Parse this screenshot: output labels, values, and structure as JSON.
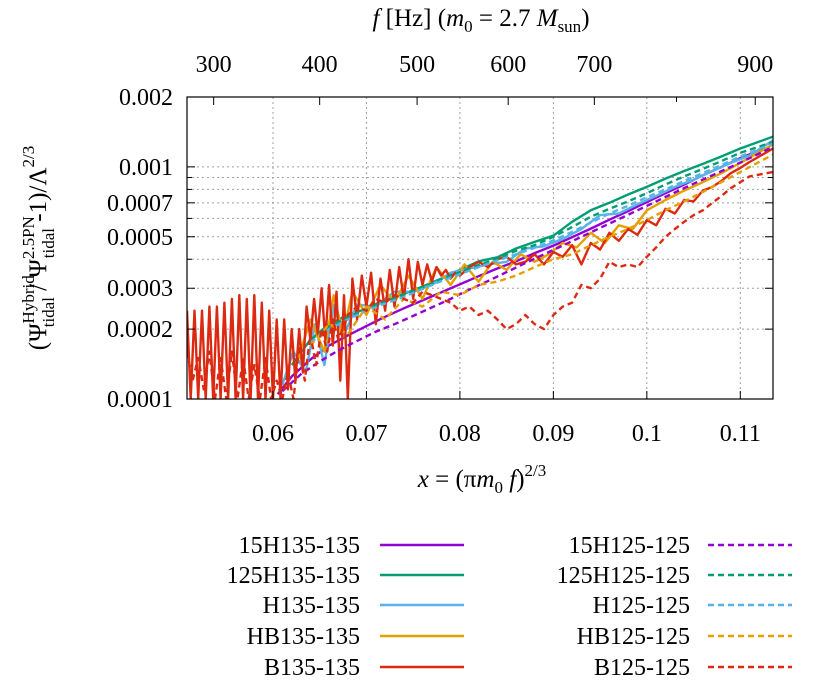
{
  "chart_data": {
    "type": "line",
    "xlabel": "x = (πm0 f)2/3",
    "xlabel_parts": {
      "prefix": "x",
      "eq": " = (",
      "pi": "π",
      "m": "m",
      "sub0": "0",
      "f": " f",
      "close": ")",
      "exp": "2/3"
    },
    "top_xlabel_parts": {
      "f": "f",
      "hz": " [Hz] (",
      "m": "m",
      "sub0": "0",
      "eq": " = 2.7 ",
      "M": "M",
      "sun": "sun",
      "close": ")"
    },
    "ylabel_parts": {
      "open": "(Ψ",
      "hybrid": "Hybrid",
      "tidal1": "tidal",
      "slash": " / Ψ",
      "pn": "2.5PN",
      "tidal2": "tidal",
      "tail": " -1)/Λ",
      "exp": "2/3"
    },
    "xlim": [
      0.0508,
      0.1135
    ],
    "ylim": [
      0.0001,
      0.002
    ],
    "yscale": "log",
    "grid": true,
    "legend_position": "below",
    "x_ticks": [
      {
        "value": 0.06,
        "label": "0.06"
      },
      {
        "value": 0.07,
        "label": "0.07"
      },
      {
        "value": 0.08,
        "label": "0.08"
      },
      {
        "value": 0.09,
        "label": "0.09"
      },
      {
        "value": 0.1,
        "label": "0.1"
      },
      {
        "value": 0.11,
        "label": "0.11"
      }
    ],
    "top_ticks": [
      {
        "value": 300,
        "label": "300"
      },
      {
        "value": 400,
        "label": "400"
      },
      {
        "value": 500,
        "label": "500"
      },
      {
        "value": 600,
        "label": "600"
      },
      {
        "value": 700,
        "label": "700"
      },
      {
        "value": 900,
        "label": "900"
      }
    ],
    "top_minor_ticks": [
      800
    ],
    "y_ticks": [
      {
        "value": 0.0001,
        "label": "0.0001"
      },
      {
        "value": 0.0002,
        "label": "0.0002"
      },
      {
        "value": 0.0003,
        "label": "0.0003"
      },
      {
        "value": 0.0005,
        "label": "0.0005"
      },
      {
        "value": 0.0007,
        "label": "0.0007"
      },
      {
        "value": 0.001,
        "label": "0.001"
      },
      {
        "value": 0.002,
        "label": "0.002"
      }
    ],
    "y_minor_ticks": [
      0.0004,
      0.0006,
      0.0008,
      0.0009
    ],
    "series": [
      {
        "name": "15H135-135",
        "color": "#9400d3",
        "dash": "solid",
        "x": [
          0.0605,
          0.062,
          0.064,
          0.066,
          0.068,
          0.07,
          0.072,
          0.074,
          0.076,
          0.078,
          0.08,
          0.082,
          0.084,
          0.086,
          0.088,
          0.09,
          0.092,
          0.094,
          0.096,
          0.098,
          0.1,
          0.102,
          0.104,
          0.106,
          0.108,
          0.11,
          0.1125
        ],
        "y": [
          0.000105,
          0.000125,
          0.000148,
          0.00017,
          0.000188,
          0.000206,
          0.000226,
          0.000246,
          0.000266,
          0.000288,
          0.000312,
          0.000338,
          0.000365,
          0.000392,
          0.000425,
          0.000458,
          0.000498,
          0.000542,
          0.000592,
          0.000645,
          0.000705,
          0.00077,
          0.00084,
          0.00092,
          0.001,
          0.00109,
          0.0012
        ]
      },
      {
        "name": "125H135-135",
        "color": "#009e73",
        "dash": "solid",
        "x": [
          0.062,
          0.064,
          0.066,
          0.068,
          0.07,
          0.072,
          0.074,
          0.076,
          0.078,
          0.08,
          0.082,
          0.084,
          0.086,
          0.088,
          0.09,
          0.092,
          0.094,
          0.096,
          0.098,
          0.1,
          0.102,
          0.104,
          0.106,
          0.108,
          0.11,
          0.1135
        ],
        "y": [
          0.00014,
          0.00018,
          0.00021,
          0.00023,
          0.000245,
          0.000268,
          0.000284,
          0.000305,
          0.00033,
          0.00036,
          0.000392,
          0.000408,
          0.000445,
          0.000475,
          0.000505,
          0.00058,
          0.00065,
          0.0007,
          0.00076,
          0.00082,
          0.00089,
          0.00096,
          0.00103,
          0.00111,
          0.0012,
          0.00135
        ]
      },
      {
        "name": "H135-135",
        "color": "#56b4e9",
        "dash": "solid",
        "x": [
          0.061,
          0.0622,
          0.0635,
          0.0645,
          0.0655,
          0.0665,
          0.0675,
          0.069,
          0.071,
          0.073,
          0.075,
          0.077,
          0.079,
          0.081,
          0.083,
          0.085,
          0.087,
          0.089,
          0.091,
          0.093,
          0.095,
          0.097,
          0.099,
          0.101,
          0.103,
          0.105,
          0.107,
          0.109,
          0.111,
          0.1135
        ],
        "y": [
          0.000115,
          0.00016,
          0.00013,
          0.00021,
          0.00014,
          0.000255,
          0.000185,
          0.000255,
          0.00025,
          0.00029,
          0.00029,
          0.00031,
          0.00035,
          0.000365,
          0.00038,
          0.00039,
          0.000445,
          0.000455,
          0.00049,
          0.00054,
          0.00062,
          0.00063,
          0.00069,
          0.00075,
          0.00082,
          0.00088,
          0.00096,
          0.00104,
          0.00112,
          0.0013
        ]
      },
      {
        "name": "HB135-135",
        "color": "#e69f00",
        "dash": "solid",
        "x": [
          0.0625,
          0.064,
          0.0655,
          0.0665,
          0.0675,
          0.0685,
          0.07,
          0.0715,
          0.073,
          0.0745,
          0.076,
          0.0775,
          0.079,
          0.0805,
          0.082,
          0.0835,
          0.085,
          0.0865,
          0.088,
          0.0895,
          0.091,
          0.0925,
          0.094,
          0.0955,
          0.097,
          0.0985,
          0.1,
          0.102,
          0.104,
          0.106,
          0.108,
          0.11,
          0.1135
        ],
        "y": [
          0.00014,
          0.00022,
          0.00016,
          0.00028,
          0.00019,
          0.00029,
          0.00023,
          0.00031,
          0.00026,
          0.00034,
          0.00027,
          0.00037,
          0.00031,
          0.00038,
          0.00032,
          0.00039,
          0.00036,
          0.00042,
          0.00039,
          0.00042,
          0.00047,
          0.00045,
          0.00052,
          0.00047,
          0.00056,
          0.00054,
          0.00065,
          0.00072,
          0.00079,
          0.00086,
          0.00094,
          0.00104,
          0.00125
        ]
      },
      {
        "name": "B135-135",
        "color": "#dc2a12",
        "dash": "solid",
        "x": [
          0.0508,
          0.0512,
          0.0516,
          0.052,
          0.0524,
          0.0528,
          0.0532,
          0.0536,
          0.054,
          0.0544,
          0.0548,
          0.0552,
          0.0556,
          0.056,
          0.0564,
          0.0568,
          0.0572,
          0.0576,
          0.058,
          0.0584,
          0.0588,
          0.0592,
          0.0596,
          0.06,
          0.0604,
          0.0608,
          0.0612,
          0.0616,
          0.062,
          0.0624,
          0.0628,
          0.0632,
          0.0636,
          0.064,
          0.0644,
          0.0648,
          0.0652,
          0.0656,
          0.066,
          0.0664,
          0.0668,
          0.0672,
          0.0676,
          0.068,
          0.0685,
          0.069,
          0.0695,
          0.07,
          0.0705,
          0.071,
          0.0715,
          0.072,
          0.0725,
          0.073,
          0.0735,
          0.074,
          0.0745,
          0.075,
          0.0755,
          0.076,
          0.0765,
          0.077,
          0.0775,
          0.078,
          0.0785,
          0.079,
          0.0795,
          0.08,
          0.081,
          0.082,
          0.083,
          0.084,
          0.085,
          0.086,
          0.087,
          0.088,
          0.089,
          0.09,
          0.091,
          0.092,
          0.093,
          0.094,
          0.095,
          0.096,
          0.097,
          0.098,
          0.099,
          0.1,
          0.101,
          0.102,
          0.103,
          0.104,
          0.105,
          0.106,
          0.107,
          0.108,
          0.109,
          0.11,
          0.111,
          0.1135
        ],
        "y": [
          0.00024,
          0.0001,
          0.00024,
          0.0001,
          0.00024,
          0.0001,
          0.00025,
          0.0001,
          0.00025,
          0.0001,
          0.00026,
          0.0001,
          0.00027,
          0.0001,
          0.00028,
          0.0001,
          0.00027,
          0.0001,
          0.00028,
          0.0001,
          0.00026,
          0.0001,
          0.00024,
          0.0001,
          0.00022,
          0.0001,
          0.00022,
          0.00011,
          0.0002,
          0.00012,
          0.0002,
          0.00013,
          0.00025,
          0.00018,
          0.00027,
          0.00019,
          0.0003,
          0.00018,
          0.00031,
          0.00017,
          0.00029,
          0.00012,
          0.00028,
          0.0001,
          0.00033,
          0.00022,
          0.00034,
          0.00025,
          0.00035,
          0.00021,
          0.00033,
          0.00024,
          0.00036,
          0.00025,
          0.00037,
          0.00027,
          0.0004,
          0.00027,
          0.00039,
          0.00031,
          0.00038,
          0.00032,
          0.00037,
          0.00034,
          0.00036,
          0.00033,
          0.00035,
          0.00034,
          0.00037,
          0.00039,
          0.00037,
          0.0004,
          0.00041,
          0.00038,
          0.00039,
          0.00042,
          0.00038,
          0.00043,
          0.00041,
          0.00046,
          0.00038,
          0.00047,
          0.00044,
          0.00052,
          0.00048,
          0.00054,
          0.00051,
          0.00059,
          0.00056,
          0.00066,
          0.00063,
          0.00072,
          0.00071,
          0.00079,
          0.00082,
          0.00087,
          0.00094,
          0.00099,
          0.00105,
          0.0012
        ]
      },
      {
        "name": "15H125-125",
        "color": "#9400d3",
        "dash": "dashed",
        "x": [
          0.061,
          0.063,
          0.065,
          0.067,
          0.069,
          0.071,
          0.073,
          0.075,
          0.077,
          0.079,
          0.081,
          0.083,
          0.085,
          0.087,
          0.089,
          0.091,
          0.093,
          0.095,
          0.097,
          0.099,
          0.101,
          0.103,
          0.105,
          0.107,
          0.109,
          0.111,
          0.1135
        ],
        "y": [
          0.000108,
          0.000128,
          0.000145,
          0.000162,
          0.000178,
          0.000195,
          0.00021,
          0.000228,
          0.000248,
          0.00027,
          0.000296,
          0.000322,
          0.000352,
          0.000385,
          0.00042,
          0.000458,
          0.0005,
          0.000546,
          0.000595,
          0.00065,
          0.00071,
          0.000776,
          0.000846,
          0.00092,
          0.001,
          0.00109,
          0.00122
        ]
      },
      {
        "name": "125H125-125",
        "color": "#009e73",
        "dash": "dashed",
        "x": [
          0.064,
          0.066,
          0.068,
          0.07,
          0.072,
          0.074,
          0.076,
          0.078,
          0.08,
          0.082,
          0.084,
          0.086,
          0.088,
          0.09,
          0.092,
          0.094,
          0.096,
          0.098,
          0.1,
          0.102,
          0.104,
          0.106,
          0.108,
          0.11,
          0.1135
        ],
        "y": [
          0.00018,
          0.000205,
          0.000225,
          0.000245,
          0.000262,
          0.000282,
          0.000302,
          0.000328,
          0.000352,
          0.000378,
          0.000402,
          0.000435,
          0.00046,
          0.0005,
          0.00055,
          0.00061,
          0.00066,
          0.00071,
          0.00077,
          0.00084,
          0.00091,
          0.00098,
          0.00106,
          0.00115,
          0.00128
        ]
      },
      {
        "name": "H125-125",
        "color": "#56b4e9",
        "dash": "dashed",
        "x": [
          0.064,
          0.066,
          0.068,
          0.07,
          0.072,
          0.074,
          0.076,
          0.078,
          0.08,
          0.082,
          0.084,
          0.086,
          0.088,
          0.09,
          0.092,
          0.094,
          0.096,
          0.098,
          0.1,
          0.102,
          0.104,
          0.106,
          0.108,
          0.11,
          0.1135
        ],
        "y": [
          0.000175,
          0.0002,
          0.00022,
          0.00024,
          0.000258,
          0.000275,
          0.000298,
          0.000322,
          0.000345,
          0.00037,
          0.000395,
          0.00042,
          0.000448,
          0.000482,
          0.000525,
          0.000575,
          0.00063,
          0.00068,
          0.00074,
          0.0008,
          0.00087,
          0.00094,
          0.00102,
          0.00111,
          0.00126
        ]
      },
      {
        "name": "HB125-125",
        "color": "#e69f00",
        "dash": "dashed",
        "x": [
          0.064,
          0.066,
          0.068,
          0.07,
          0.072,
          0.074,
          0.076,
          0.078,
          0.08,
          0.082,
          0.084,
          0.086,
          0.088,
          0.09,
          0.092,
          0.094,
          0.096,
          0.098,
          0.1,
          0.102,
          0.104,
          0.106,
          0.108,
          0.11,
          0.1135
        ],
        "y": [
          0.00017,
          0.00021,
          0.00019,
          0.00025,
          0.00022,
          0.00027,
          0.00025,
          0.00029,
          0.00028,
          0.00031,
          0.00032,
          0.00034,
          0.00037,
          0.0004,
          0.00042,
          0.00046,
          0.0005,
          0.00054,
          0.00059,
          0.00065,
          0.00071,
          0.00078,
          0.00086,
          0.00095,
          0.00113
        ]
      },
      {
        "name": "B125-125",
        "color": "#dc2a12",
        "dash": "dashed",
        "x": [
          0.0508,
          0.0514,
          0.052,
          0.0526,
          0.0532,
          0.0538,
          0.0544,
          0.055,
          0.0556,
          0.0562,
          0.0568,
          0.0574,
          0.058,
          0.0586,
          0.0592,
          0.0598,
          0.0604,
          0.061,
          0.0616,
          0.0622,
          0.0628,
          0.0634,
          0.064,
          0.0646,
          0.0652,
          0.0658,
          0.0664,
          0.067,
          0.068,
          0.069,
          0.07,
          0.071,
          0.072,
          0.073,
          0.074,
          0.075,
          0.076,
          0.077,
          0.078,
          0.079,
          0.08,
          0.081,
          0.082,
          0.083,
          0.084,
          0.085,
          0.086,
          0.087,
          0.088,
          0.089,
          0.09,
          0.091,
          0.092,
          0.093,
          0.094,
          0.095,
          0.096,
          0.097,
          0.098,
          0.099,
          0.1,
          0.101,
          0.102,
          0.103,
          0.104,
          0.105,
          0.106,
          0.107,
          0.108,
          0.109,
          0.11,
          0.111,
          0.1135
        ],
        "y": [
          0.00016,
          0.00012,
          0.00015,
          0.00011,
          0.00016,
          0.0001,
          0.00015,
          0.0001,
          0.00016,
          0.0001,
          0.00015,
          0.0001,
          0.00014,
          0.0001,
          0.00015,
          0.0001,
          0.00012,
          0.0001,
          0.00013,
          0.0001,
          0.00017,
          0.00012,
          0.00019,
          0.00014,
          0.0002,
          0.00016,
          0.00022,
          0.00018,
          0.00023,
          0.00025,
          0.00024,
          0.00027,
          0.00026,
          0.00028,
          0.00027,
          0.00026,
          0.00029,
          0.00028,
          0.00027,
          0.00026,
          0.00024,
          0.00025,
          0.00023,
          0.00024,
          0.00022,
          0.0002,
          0.00021,
          0.00023,
          0.00021,
          0.0002,
          0.00023,
          0.00025,
          0.00026,
          0.00031,
          0.0003,
          0.00033,
          0.00039,
          0.00037,
          0.00038,
          0.00037,
          0.00041,
          0.00045,
          0.0005,
          0.00054,
          0.00058,
          0.00062,
          0.00065,
          0.0007,
          0.00075,
          0.00081,
          0.00086,
          0.00091,
          0.00095
        ]
      }
    ],
    "legend_columns": [
      [
        "15H135-135",
        "125H135-135",
        "H135-135",
        "HB135-135",
        "B135-135"
      ],
      [
        "15H125-125",
        "125H125-125",
        "H125-125",
        "HB125-125",
        "B125-125"
      ]
    ]
  }
}
